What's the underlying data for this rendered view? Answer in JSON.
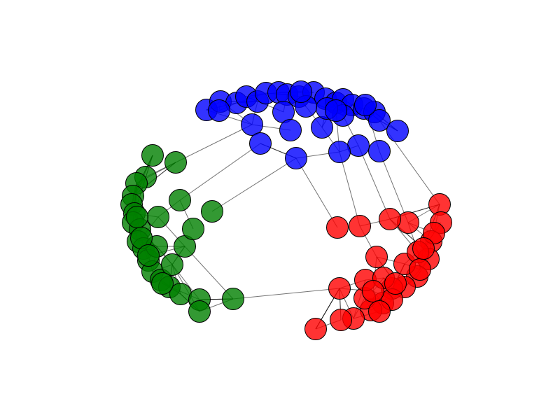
{
  "graph": {
    "clusters": [
      {
        "name": "blue",
        "color": "#0000ff",
        "node_count": 30
      },
      {
        "name": "green",
        "color": "#008000",
        "node_count": 30
      },
      {
        "name": "red",
        "color": "#ff0000",
        "node_count": 30
      }
    ]
  }
}
